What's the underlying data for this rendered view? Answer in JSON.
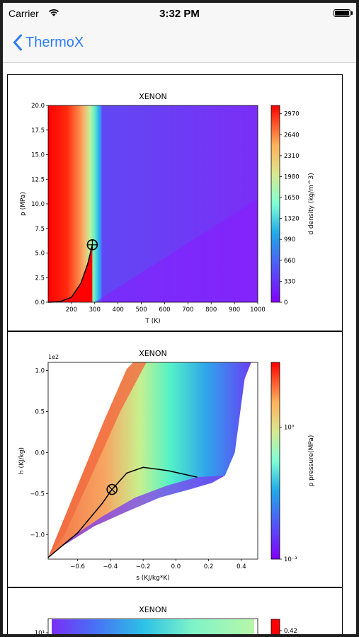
{
  "status_bar": {
    "carrier": "Carrier",
    "time": "3:32 PM"
  },
  "nav": {
    "back_label": "ThermoX"
  },
  "colors": {
    "accent": "#2f7cf6",
    "navbar_bg": "#f7f7f7"
  },
  "chart_data": [
    {
      "type": "heatmap",
      "title": "XENON",
      "xlabel": "T (K)",
      "ylabel": "p (MPa)",
      "xlim": [
        100,
        1000
      ],
      "ylim": [
        0,
        20
      ],
      "xticks": [
        200,
        300,
        400,
        500,
        600,
        700,
        800,
        900,
        1000
      ],
      "yticks": [
        0.0,
        2.5,
        5.0,
        7.5,
        10.0,
        12.5,
        15.0,
        17.5,
        20.0
      ],
      "ytick_labels": [
        "0.0",
        "2.5",
        "5.0",
        "7.5",
        "10.0",
        "12.5",
        "15.0",
        "17.5",
        "20.0"
      ],
      "colorbar": {
        "label": "d density (kg/m^3)",
        "ticks": [
          0,
          330,
          660,
          990,
          1320,
          1650,
          1980,
          2310,
          2640,
          2970
        ],
        "range": [
          0,
          3100
        ],
        "scale": "linear"
      },
      "saturation_curve": {
        "x": [
          100,
          150,
          200,
          240,
          270,
          289.7
        ],
        "y": [
          0.0,
          0.05,
          0.5,
          1.9,
          3.9,
          5.84
        ]
      },
      "critical_point": {
        "x": 289.7,
        "y": 5.84
      },
      "colormap": "rainbow"
    },
    {
      "type": "heatmap",
      "title": "XENON",
      "offset_label": "1e2",
      "xlabel": "s (KJ/kg*K)",
      "ylabel": "h (KJ/kg)",
      "xlim": [
        -0.78,
        0.5
      ],
      "ylim": [
        -1.3,
        1.1
      ],
      "xticks": [
        -0.6,
        -0.4,
        -0.2,
        0.0,
        0.2,
        0.4
      ],
      "xtick_labels": [
        "−0.6",
        "−0.4",
        "−0.2",
        "0.0",
        "0.2",
        "0.4"
      ],
      "yticks": [
        -1.0,
        -0.5,
        0.0,
        0.5,
        1.0
      ],
      "ytick_labels": [
        "−1.0",
        "−0.5",
        "0.0",
        "0.5",
        "1.0"
      ],
      "colorbar": {
        "label": "p pressure(MPa)",
        "ticks": [
          0.001,
          1
        ],
        "tick_labels": [
          "10⁻³",
          "10⁰"
        ],
        "range": [
          0.001,
          30
        ],
        "scale": "log"
      },
      "saturation_dome": {
        "x": [
          -0.78,
          -0.6,
          -0.45,
          -0.39,
          -0.3,
          -0.2,
          -0.05,
          0.13
        ],
        "y": [
          -1.28,
          -0.98,
          -0.62,
          -0.45,
          -0.25,
          -0.18,
          -0.22,
          -0.3
        ]
      },
      "critical_point": {
        "x": -0.39,
        "y": -0.45
      },
      "colormap": "rainbow"
    },
    {
      "type": "heatmap",
      "title": "XENON",
      "yscale": "log",
      "yticks": [
        10
      ],
      "ytick_labels": [
        "10¹"
      ],
      "colorbar": {
        "ticks": [
          0.42
        ],
        "tick_labels": [
          "0.42"
        ]
      },
      "colormap": "rainbow"
    }
  ]
}
